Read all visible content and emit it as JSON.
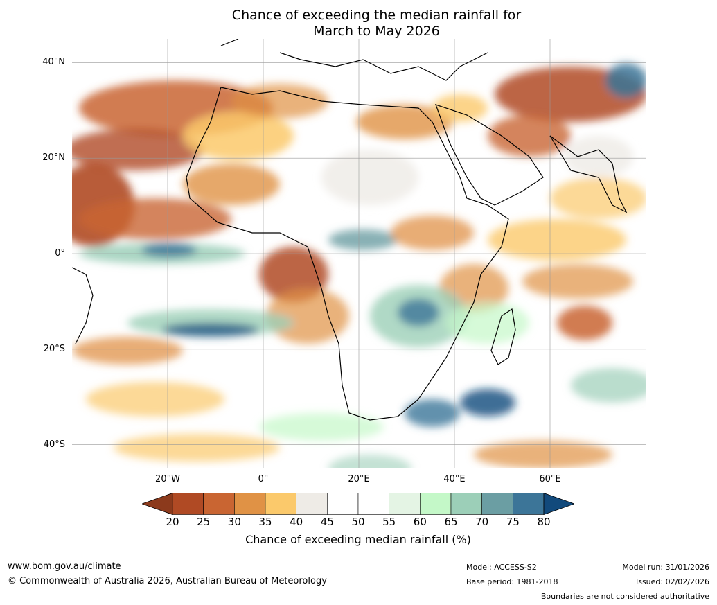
{
  "title": {
    "line1": "Chance of exceeding the median rainfall for",
    "line2": "March to May 2026"
  },
  "map": {
    "lat_labels": [
      "40°N",
      "20°N",
      "0°",
      "20°S",
      "40°S"
    ],
    "lon_labels": [
      "20°W",
      "0°",
      "20°E",
      "40°E",
      "60°E"
    ],
    "lat_values": [
      40,
      20,
      0,
      -20,
      -40
    ],
    "lon_values": [
      -20,
      0,
      20,
      40,
      60
    ],
    "lon_range": [
      -40,
      80
    ],
    "lat_range": [
      -45,
      45
    ]
  },
  "colorbar": {
    "ticks": [
      "20",
      "25",
      "30",
      "35",
      "40",
      "45",
      "50",
      "55",
      "60",
      "65",
      "70",
      "75",
      "80"
    ],
    "colors": [
      "#8c3a1c",
      "#b04a24",
      "#c96532",
      "#e09245",
      "#fbc96b",
      "#eeebe6",
      "#ffffff",
      "#ffffff",
      "#e4f4e4",
      "#c4f8c8",
      "#9ccfb8",
      "#6b9ea3",
      "#3c7598",
      "#124a7c"
    ],
    "label": "Chance of exceeding median rainfall (%)"
  },
  "footer": {
    "website": "www.bom.gov.au/climate",
    "copyright": "© Commonwealth of Australia 2026, Australian Bureau of Meteorology",
    "model": "Model: ACCESS-S2",
    "base_period": "Base period: 1981-2018",
    "model_run": "Model run: 31/01/2026",
    "issued": "Issued: 02/02/2026",
    "disclaimer": "Boundaries are not considered authoritative"
  }
}
